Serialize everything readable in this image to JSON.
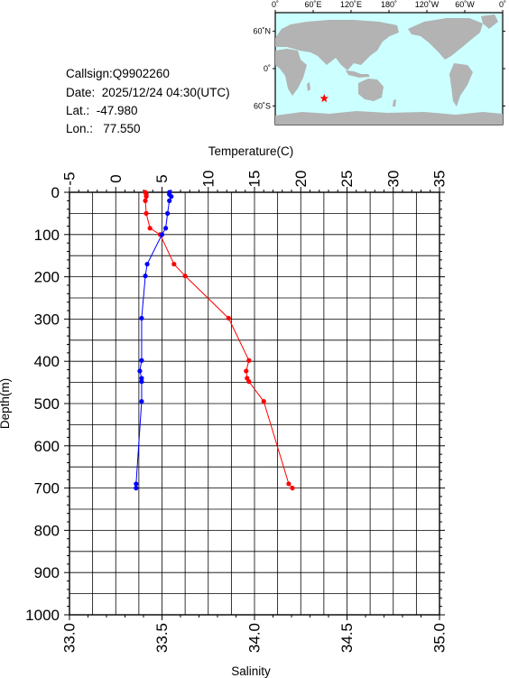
{
  "station": {
    "callsign": "Callsign:Q9902260",
    "date": "Date:  2025/12/24 04:30(UTC)",
    "lat": "Lat.:  -47.980",
    "lon": "Lon.:   77.550"
  },
  "map": {
    "lon_labels": [
      "0˚",
      "60˚E",
      "120˚E",
      "180˚",
      "120˚W",
      "60˚W",
      "0˚"
    ],
    "lat_labels": [
      "60˚N",
      "0˚",
      "60˚S"
    ],
    "ocean_color": "#ccffff",
    "land_color": "#b3b3b3",
    "marker_color": "#ff0000",
    "marker_icon": "star-icon",
    "marker_lon": 77.55,
    "marker_lat": -47.98
  },
  "chart_data": {
    "type": "line",
    "ylabel": "Depth(m)",
    "ylim": [
      0,
      1000
    ],
    "y_inverted": true,
    "y_ticks": [
      "0",
      "100",
      "200",
      "300",
      "400",
      "500",
      "600",
      "700",
      "800",
      "900",
      "1000"
    ],
    "x_top": {
      "label": "Temperature(C)",
      "lim": [
        -5,
        35
      ],
      "ticks": [
        "-5",
        "0",
        "5",
        "10",
        "15",
        "20",
        "25",
        "30",
        "35"
      ]
    },
    "x_bottom": {
      "label": "Salinity",
      "lim": [
        33.0,
        35.0
      ],
      "ticks": [
        "33.0",
        "33.5",
        "34.0",
        "34.5",
        "35.0"
      ]
    },
    "grid": true,
    "series": [
      {
        "axis": "top",
        "color": "#ff0000",
        "points": [
          {
            "x": 3.2,
            "y": 0
          },
          {
            "x": 3.3,
            "y": 5
          },
          {
            "x": 3.3,
            "y": 10
          },
          {
            "x": 3.2,
            "y": 20
          },
          {
            "x": 3.3,
            "y": 50
          },
          {
            "x": 3.7,
            "y": 85
          },
          {
            "x": 4.8,
            "y": 100
          },
          {
            "x": 6.3,
            "y": 170
          },
          {
            "x": 7.5,
            "y": 198
          },
          {
            "x": 12.2,
            "y": 298
          },
          {
            "x": 14.4,
            "y": 398
          },
          {
            "x": 14.1,
            "y": 423
          },
          {
            "x": 14.2,
            "y": 440
          },
          {
            "x": 14.4,
            "y": 448
          },
          {
            "x": 16.0,
            "y": 495
          },
          {
            "x": 18.7,
            "y": 690
          },
          {
            "x": 19.1,
            "y": 700
          }
        ]
      },
      {
        "axis": "bottom",
        "color": "#0000ff",
        "points": [
          {
            "x": 33.54,
            "y": 0
          },
          {
            "x": 33.54,
            "y": 5
          },
          {
            "x": 33.55,
            "y": 10
          },
          {
            "x": 33.54,
            "y": 20
          },
          {
            "x": 33.53,
            "y": 50
          },
          {
            "x": 33.52,
            "y": 85
          },
          {
            "x": 33.5,
            "y": 100
          },
          {
            "x": 33.42,
            "y": 170
          },
          {
            "x": 33.41,
            "y": 198
          },
          {
            "x": 33.39,
            "y": 298
          },
          {
            "x": 33.39,
            "y": 398
          },
          {
            "x": 33.38,
            "y": 423
          },
          {
            "x": 33.39,
            "y": 440
          },
          {
            "x": 33.39,
            "y": 448
          },
          {
            "x": 33.39,
            "y": 495
          },
          {
            "x": 33.36,
            "y": 690
          },
          {
            "x": 33.36,
            "y": 700
          }
        ]
      }
    ]
  }
}
